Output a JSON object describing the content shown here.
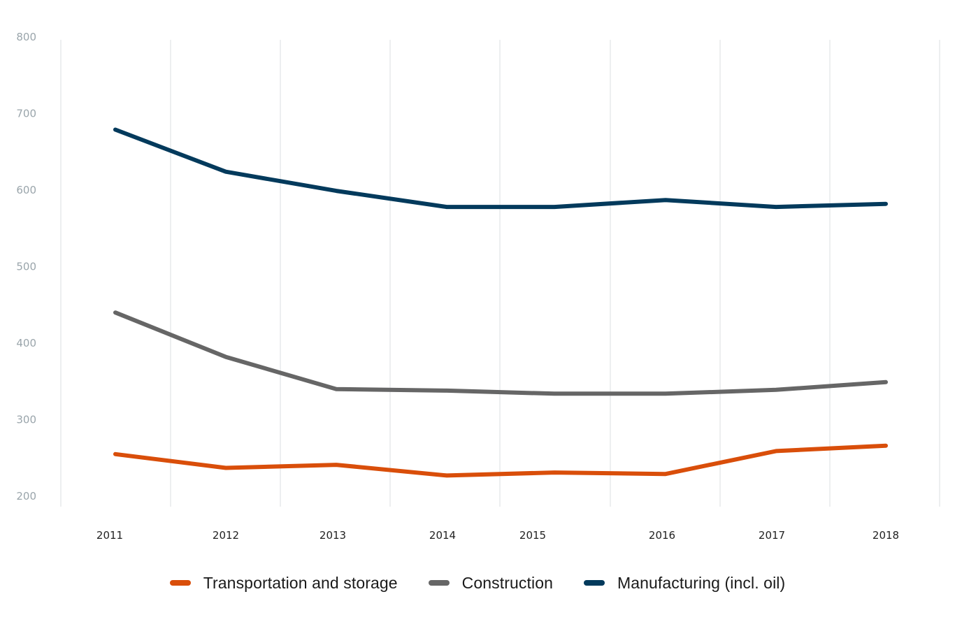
{
  "chart_data": {
    "type": "line",
    "title": "",
    "xlabel": "",
    "ylabel": "",
    "x": [
      "2011",
      "2012",
      "2013",
      "2014",
      "2015",
      "2016",
      "2017",
      "2018"
    ],
    "ylim": [
      200,
      800
    ],
    "yticks": [
      "800",
      "700",
      "600",
      "500",
      "400",
      "300",
      "200"
    ],
    "ytick_values": [
      800,
      700,
      600,
      500,
      400,
      300,
      200
    ],
    "grid": "vertical",
    "legend_position": "bottom-center",
    "series": [
      {
        "name": "Transportation and storage",
        "color": "#d94e0a",
        "values": [
          255,
          237,
          241,
          227,
          231,
          229,
          259,
          266
        ]
      },
      {
        "name": "Construction",
        "color": "#666666",
        "values": [
          440,
          382,
          340,
          338,
          334,
          334,
          339,
          349
        ]
      },
      {
        "name": "Manufacturing (incl. oil)",
        "color": "#033a5c",
        "values": [
          679,
          624,
          599,
          578,
          578,
          587,
          578,
          582
        ]
      }
    ]
  },
  "legend": {
    "items": [
      {
        "label": "Transportation and storage",
        "color": "#d94e0a"
      },
      {
        "label": "Construction",
        "color": "#666666"
      },
      {
        "label": "Manufacturing (incl. oil)",
        "color": "#033a5c"
      }
    ]
  },
  "colors": {
    "gridline": "#e1e4e6",
    "ytick_text": "#9aa5ab",
    "xtick_text": "#222222",
    "background": "#ffffff"
  }
}
